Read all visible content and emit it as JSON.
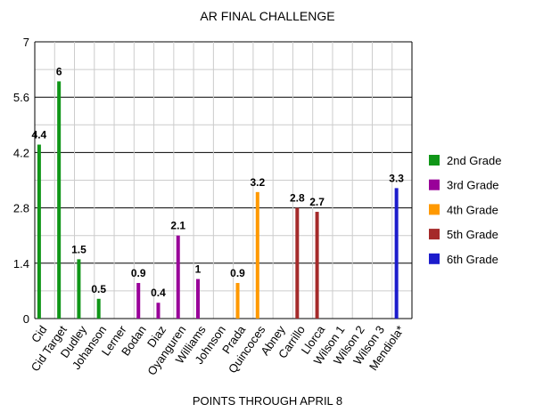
{
  "chart_data": {
    "type": "bar",
    "title": "AR FINAL CHALLENGE",
    "xlabel": "POINTS THROUGH APRIL 8",
    "ylabel": "",
    "ylim": [
      0,
      7
    ],
    "yticks": [
      "0",
      "1.4",
      "2.8",
      "4.2",
      "5.6",
      "7"
    ],
    "grid": true,
    "legend_position": "right",
    "categories": [
      "Cid",
      "Cid Target",
      "Dudley",
      "Johanson",
      "Lerner",
      "Bodan",
      "Diaz",
      "Oyanguren",
      "Williams",
      "Johnson",
      "Prada",
      "Quincoces",
      "Abney",
      "Carrillo",
      "Llorca",
      "Wilson 1",
      "Wilson 2",
      "Wilson 3",
      "Mendiola*"
    ],
    "series": [
      {
        "name": "2nd Grade",
        "color": "#109618",
        "values": [
          4.4,
          6,
          1.5,
          0.5,
          null,
          null,
          null,
          null,
          null,
          null,
          null,
          null,
          null,
          null,
          null,
          null,
          null,
          null,
          null
        ]
      },
      {
        "name": "3rd Grade",
        "color": "#990099",
        "values": [
          null,
          null,
          null,
          null,
          null,
          0.9,
          0.4,
          2.1,
          1,
          null,
          null,
          null,
          null,
          null,
          null,
          null,
          null,
          null,
          null
        ]
      },
      {
        "name": "4th Grade",
        "color": "#ff9900",
        "values": [
          null,
          null,
          null,
          null,
          null,
          null,
          null,
          null,
          null,
          null,
          0.9,
          3.2,
          null,
          null,
          null,
          null,
          null,
          null,
          null
        ]
      },
      {
        "name": "5th Grade",
        "color": "#a52a2a",
        "values": [
          null,
          null,
          null,
          null,
          null,
          null,
          null,
          null,
          null,
          null,
          null,
          null,
          null,
          2.8,
          2.7,
          null,
          null,
          null,
          null
        ]
      },
      {
        "name": "6th Grade",
        "color": "#1c1ccc",
        "values": [
          null,
          null,
          null,
          null,
          null,
          null,
          null,
          null,
          null,
          null,
          null,
          null,
          null,
          null,
          null,
          null,
          null,
          null,
          3.3
        ]
      }
    ],
    "data_labels": [
      "4.4",
      "6",
      "1.5",
      "0.5",
      "",
      "0.9",
      "0.4",
      "2.1",
      "1",
      "",
      "0.9",
      "3.2",
      "",
      "2.8",
      "2.7",
      "",
      "",
      "",
      "3.3"
    ]
  }
}
